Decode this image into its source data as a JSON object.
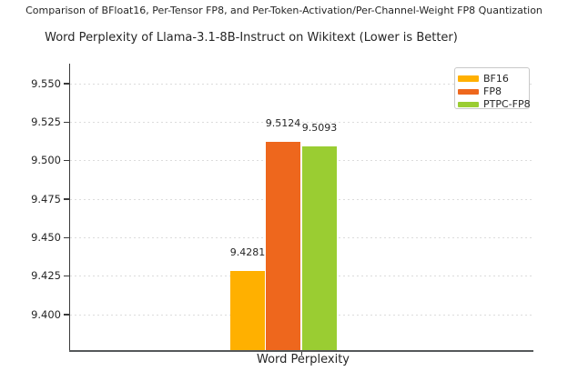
{
  "chart_data": {
    "type": "bar",
    "suptitle": "Comparison of BFloat16, Per-Tensor FP8, and Per-Token-Activation/Per-Channel-Weight FP8 Quantization",
    "title": "Word Perplexity of Llama-3.1-8B-Instruct on Wikitext (Lower is Better)",
    "categories": [
      "Word Perplexity"
    ],
    "series": [
      {
        "name": "BF16",
        "value": 9.4281,
        "value_label": "9.4281",
        "color": "#FFB000"
      },
      {
        "name": "FP8",
        "value": 9.5124,
        "value_label": "9.5124",
        "color": "#EE671D"
      },
      {
        "name": "PTPC-FP8",
        "value": 9.5093,
        "value_label": "9.5093",
        "color": "#9ACD32"
      }
    ],
    "xlabel": "",
    "ylabel": "",
    "ylim": [
      9.377,
      9.563
    ],
    "yticks": [
      9.4,
      9.425,
      9.45,
      9.475,
      9.5,
      9.525,
      9.55
    ],
    "ytick_labels": [
      "9.400",
      "9.425",
      "9.450",
      "9.475",
      "9.500",
      "9.525",
      "9.550"
    ],
    "grid": "horizontal-dashed",
    "legend": {
      "position": "upper-right",
      "entries": [
        "BF16",
        "FP8",
        "PTPC-FP8"
      ]
    }
  }
}
